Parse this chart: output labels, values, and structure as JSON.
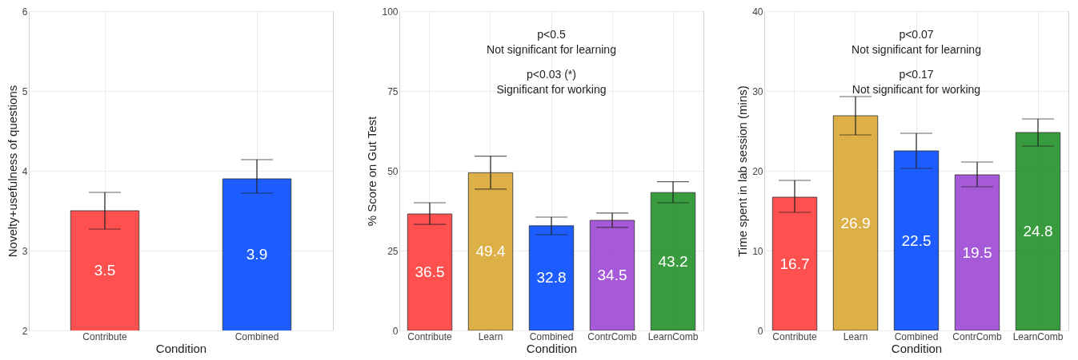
{
  "chart_data": [
    {
      "type": "bar",
      "xlabel": "Condition",
      "ylabel": "Novelty+usefulness of questions",
      "categories": [
        "Contribute",
        "Combined"
      ],
      "values": [
        3.5,
        3.9
      ],
      "colors": [
        "#ff4747",
        "#1155ff"
      ],
      "errors": [
        [
          3.27,
          3.73
        ],
        [
          3.72,
          4.14
        ]
      ],
      "ylim": [
        2,
        6
      ],
      "yticks": [
        2,
        3,
        4,
        5,
        6
      ],
      "grid": true,
      "data_labels": true
    },
    {
      "type": "bar",
      "xlabel": "Condition",
      "ylabel": "% Score on Gut Test",
      "categories": [
        "Contribute",
        "Learn",
        "Combined",
        "ContrComb",
        "LearnComb"
      ],
      "values": [
        36.5,
        49.4,
        32.8,
        34.5,
        43.2
      ],
      "colors": [
        "#ff4747",
        "#dcac3e",
        "#1155ff",
        "#a352d6",
        "#2e9634"
      ],
      "errors": [
        [
          33.2,
          40.0
        ],
        [
          44.3,
          54.6
        ],
        [
          30.0,
          35.5
        ],
        [
          32.3,
          36.8
        ],
        [
          40.0,
          46.6
        ]
      ],
      "ylim": [
        0,
        100
      ],
      "yticks": [
        0,
        25,
        50,
        75,
        100
      ],
      "grid": true,
      "data_labels": true,
      "annotations": [
        "p<0.5\nNot significant for learning",
        "p<0.03 (*)\nSignificant for working"
      ]
    },
    {
      "type": "bar",
      "xlabel": "Condition",
      "ylabel": "Time spent in lab session (mins)",
      "categories": [
        "Contribute",
        "Learn",
        "Combined",
        "ContrComb",
        "LearnComb"
      ],
      "values": [
        16.7,
        26.9,
        22.5,
        19.5,
        24.8
      ],
      "colors": [
        "#ff4747",
        "#dcac3e",
        "#1155ff",
        "#a352d6",
        "#2e9634"
      ],
      "errors": [
        [
          14.8,
          18.8
        ],
        [
          24.5,
          29.3
        ],
        [
          20.3,
          24.7
        ],
        [
          18.0,
          21.1
        ],
        [
          23.1,
          26.5
        ]
      ],
      "ylim": [
        0,
        40
      ],
      "yticks": [
        0,
        10,
        20,
        30,
        40
      ],
      "grid": true,
      "data_labels": true,
      "annotations": [
        "p<0.07\nNot significant for learning",
        "p<0.17\nNot significant for working"
      ]
    }
  ]
}
